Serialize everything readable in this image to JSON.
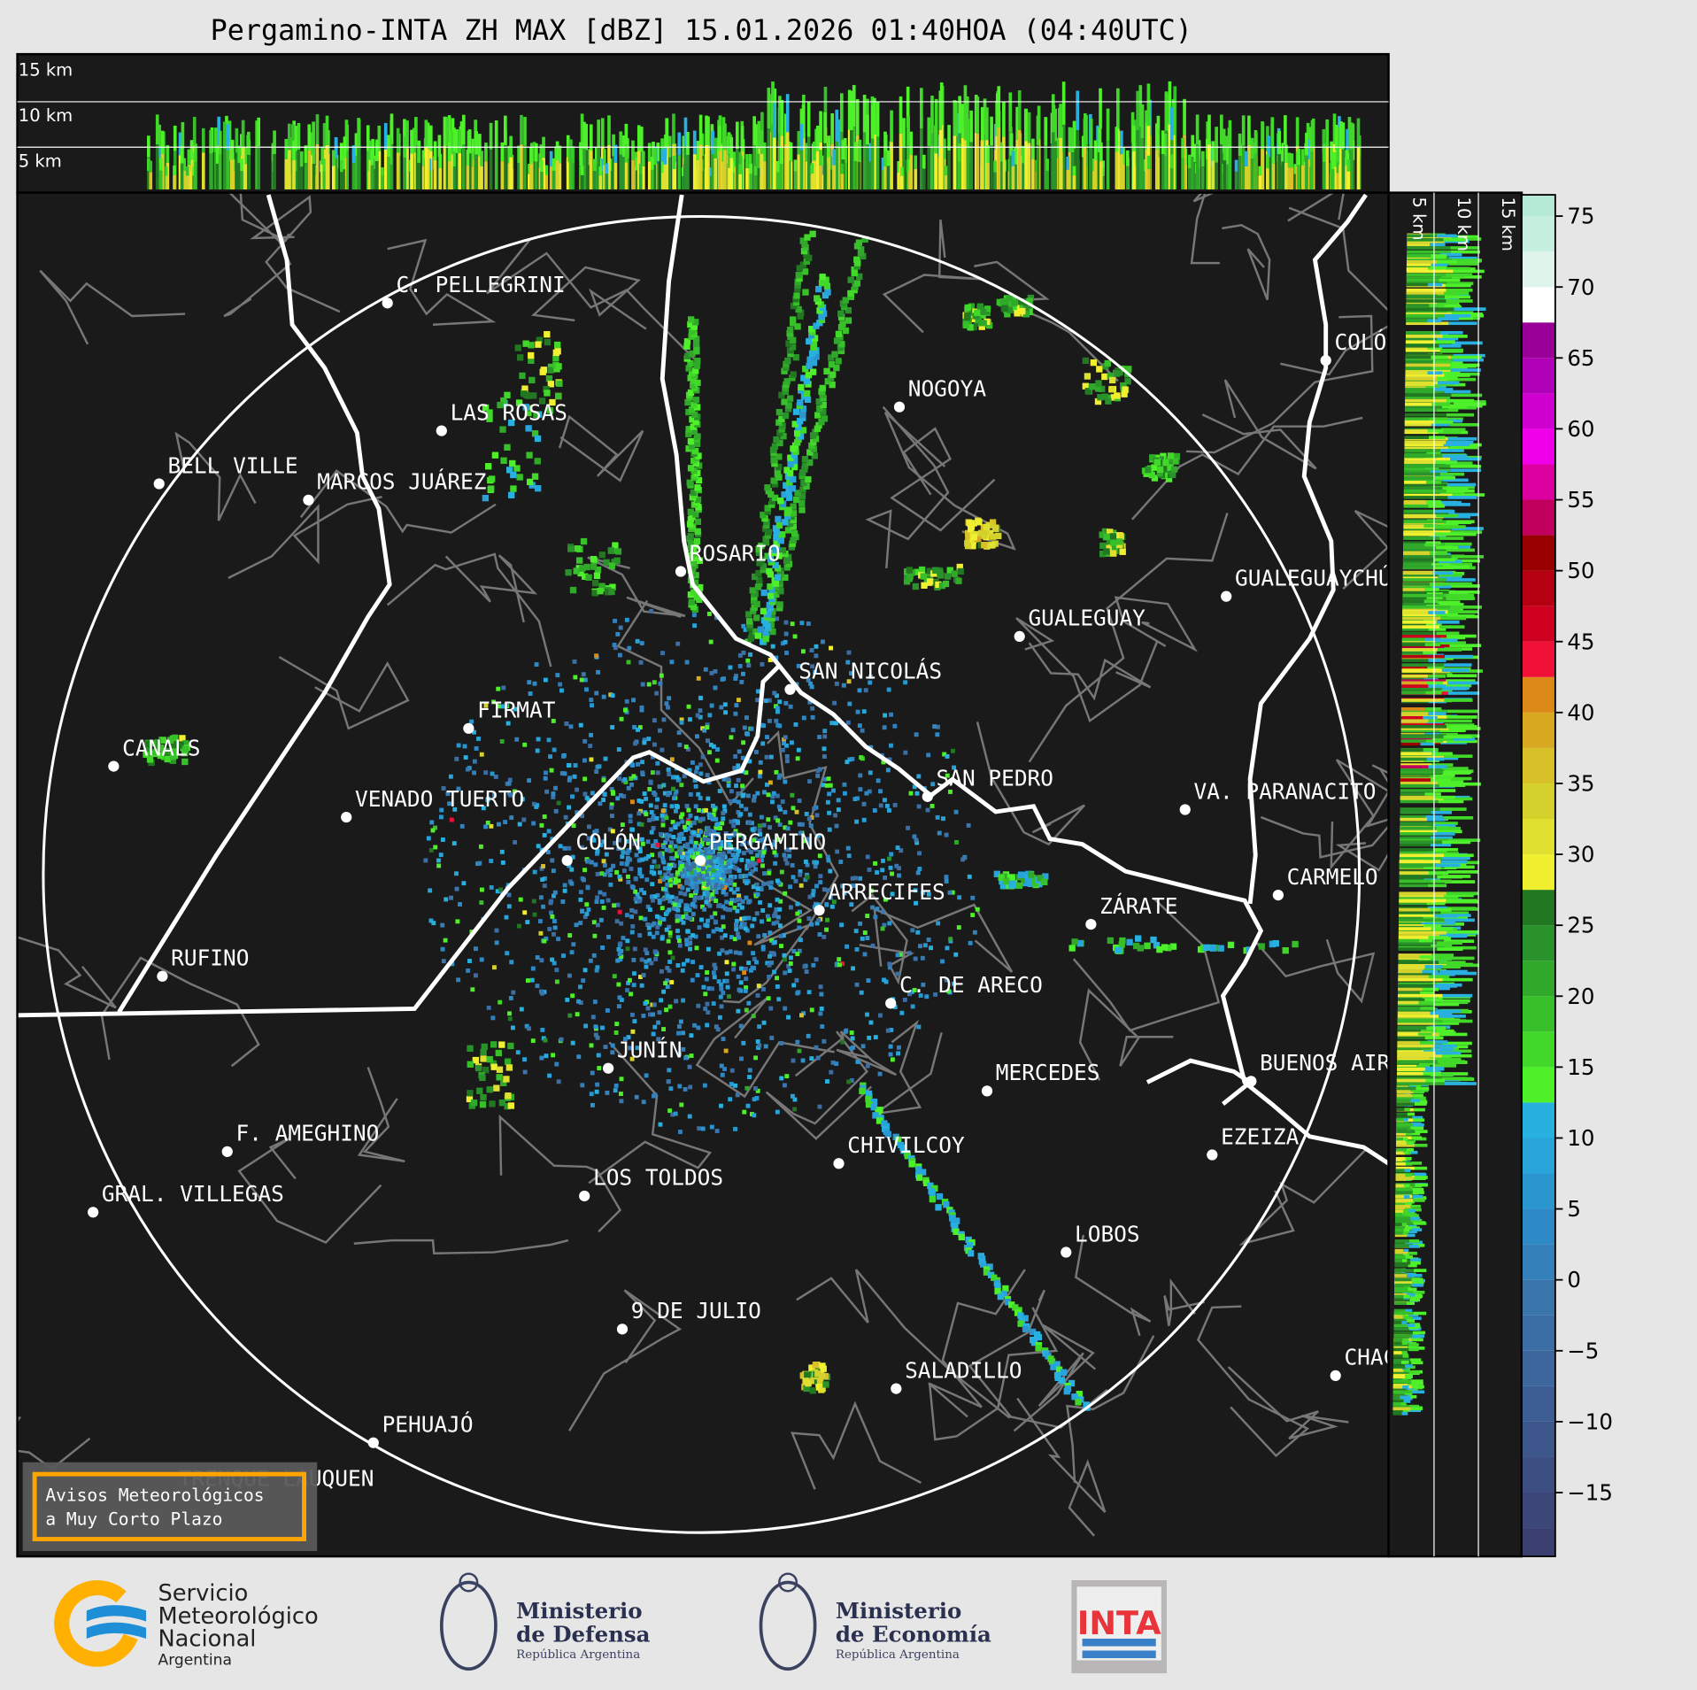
{
  "title": "Pergamino-INTA ZH MAX [dBZ] 15.01.2026 01:40HOA (04:40UTC)",
  "top_panel": {
    "height_labels": [
      "15 km",
      "10 km",
      "5 km"
    ]
  },
  "side_panel": {
    "height_labels": [
      "5 km",
      "10 km",
      "15 km"
    ]
  },
  "cities": [
    "C. PELLEGRINI",
    "LAS ROSAS",
    "BELL VILLE",
    "MARCOS JUÁREZ",
    "NOGOYA",
    "COLÓN",
    "ROSARIO",
    "GUALEGUAYCHÚ",
    "GUALEGUAY",
    "SAN NICOLÁS",
    "FIRMAT",
    "CANALS",
    "SAN PEDRO",
    "VA. PARANACITO",
    "VENADO TUERTO",
    "COLÓN",
    "PERGAMINO",
    "CARMELO",
    "ARRECIFES",
    "ZÁRATE",
    "RUFINO",
    "C. DE ARECO",
    "JUNÍN",
    "MERCEDES",
    "BUENOS AIRES",
    "F. AMEGHINO",
    "EZEIZA",
    "CHIVILCOY",
    "GRAL. VILLEGAS",
    "LOS TOLDOS",
    "LOBOS",
    "9 DE JULIO",
    "CHACABUCO",
    "SALADILLO",
    "PEHUAJÓ",
    "TRENQUE LAUQUEN"
  ],
  "warning_box": {
    "line1": "Avisos Meteorológicos",
    "line2": "a Muy Corto Plazo",
    "border_color": "#ffa500"
  },
  "colorbar": {
    "unit": "dBZ",
    "min": -20,
    "max": 77.5,
    "step": 2.5,
    "ticks": [
      75,
      70,
      65,
      60,
      55,
      50,
      45,
      40,
      35,
      30,
      25,
      20,
      15,
      10,
      5,
      0,
      -5,
      -10,
      -15
    ],
    "tick_labels": [
      "75",
      "70",
      "65",
      "60",
      "55",
      "50",
      "45",
      "40",
      "35",
      "30",
      "25",
      "20",
      "15",
      "10",
      "5",
      "0",
      "−5",
      "−10",
      "−15"
    ],
    "colors": [
      "#3b3f70",
      "#3c4678",
      "#3d4e82",
      "#3d568c",
      "#3d5e94",
      "#3c669c",
      "#3b6ea4",
      "#3a76ac",
      "#3480ba",
      "#2e8ac6",
      "#2a96d0",
      "#28a4da",
      "#28b0e0",
      "#4ef02a",
      "#42d82a",
      "#38c02a",
      "#30a82a",
      "#2a922a",
      "#227820",
      "#f0f030",
      "#e0e030",
      "#d4d02c",
      "#d8c028",
      "#d8a820",
      "#dc8818",
      "#f01038",
      "#d00020",
      "#b40010",
      "#980000",
      "#c0005c",
      "#dc00a0",
      "#f000e8",
      "#d000d0",
      "#b000b8",
      "#980098",
      "#ffffff",
      "#dff5ec",
      "#c6efdf",
      "#b4ead6",
      "#a4e5cf",
      "#94e0c6",
      "#88dcbc",
      "#88dcbc"
    ]
  },
  "logos": {
    "smn": [
      "Servicio",
      "Meteorológico",
      "Nacional",
      "Argentina"
    ],
    "defensa": [
      "Ministerio",
      "de Defensa",
      "República Argentina"
    ],
    "economia": [
      "Ministerio",
      "de Economía",
      "República Argentina"
    ],
    "inta": "INTA"
  }
}
